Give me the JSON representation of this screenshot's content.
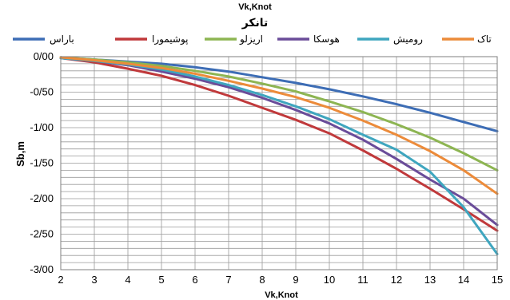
{
  "chart_data": {
    "type": "line",
    "top_label": "Vk,Knot",
    "title": "تانکر",
    "xlabel": "Vk,Knot",
    "ylabel": "Sb,m",
    "x": [
      2,
      3,
      4,
      5,
      6,
      7,
      8,
      9,
      10,
      11,
      12,
      13,
      14,
      15
    ],
    "x_ticks": [
      "2",
      "3",
      "4",
      "5",
      "6",
      "7",
      "8",
      "9",
      "10",
      "11",
      "12",
      "13",
      "14",
      "15"
    ],
    "xlim": [
      2,
      15
    ],
    "ylim": [
      -3,
      0
    ],
    "y_ticks": [
      {
        "value": 0,
        "label": "0/00"
      },
      {
        "value": -0.5,
        "label": "-0/50"
      },
      {
        "value": -1,
        "label": "-1/00"
      },
      {
        "value": -1.5,
        "label": "-1/50"
      },
      {
        "value": -2,
        "label": "-2/00"
      },
      {
        "value": -2.5,
        "label": "-2/50"
      },
      {
        "value": -3,
        "label": "-3/00"
      }
    ],
    "grid": true,
    "legend_position": "top",
    "series": [
      {
        "name": "باراس",
        "color": "#3d6db5",
        "values": [
          -0.01,
          -0.04,
          -0.07,
          -0.1,
          -0.15,
          -0.21,
          -0.29,
          -0.37,
          -0.46,
          -0.56,
          -0.67,
          -0.79,
          -0.92,
          -1.05
        ]
      },
      {
        "name": "پوشیمورا",
        "color": "#c0393b",
        "values": [
          -0.02,
          -0.08,
          -0.17,
          -0.27,
          -0.4,
          -0.55,
          -0.72,
          -0.89,
          -1.08,
          -1.32,
          -1.58,
          -1.86,
          -2.15,
          -2.45
        ]
      },
      {
        "name": "اریزلو",
        "color": "#8db552",
        "values": [
          -0.01,
          -0.04,
          -0.08,
          -0.13,
          -0.2,
          -0.28,
          -0.38,
          -0.49,
          -0.63,
          -0.78,
          -0.95,
          -1.14,
          -1.36,
          -1.6
        ]
      },
      {
        "name": "هوسکا",
        "color": "#6a4c99",
        "values": [
          -0.02,
          -0.06,
          -0.12,
          -0.21,
          -0.31,
          -0.43,
          -0.58,
          -0.75,
          -0.94,
          -1.17,
          -1.44,
          -1.73,
          -2.0,
          -2.37
        ]
      },
      {
        "name": "رومیش",
        "color": "#3fa6bf",
        "values": [
          -0.02,
          -0.06,
          -0.11,
          -0.18,
          -0.28,
          -0.4,
          -0.54,
          -0.7,
          -0.88,
          -1.1,
          -1.31,
          -1.62,
          -2.12,
          -2.78
        ]
      },
      {
        "name": "تاک",
        "color": "#ec8b3a",
        "values": [
          -0.01,
          -0.05,
          -0.1,
          -0.16,
          -0.24,
          -0.34,
          -0.45,
          -0.57,
          -0.72,
          -0.9,
          -1.1,
          -1.33,
          -1.6,
          -1.93
        ]
      }
    ]
  }
}
